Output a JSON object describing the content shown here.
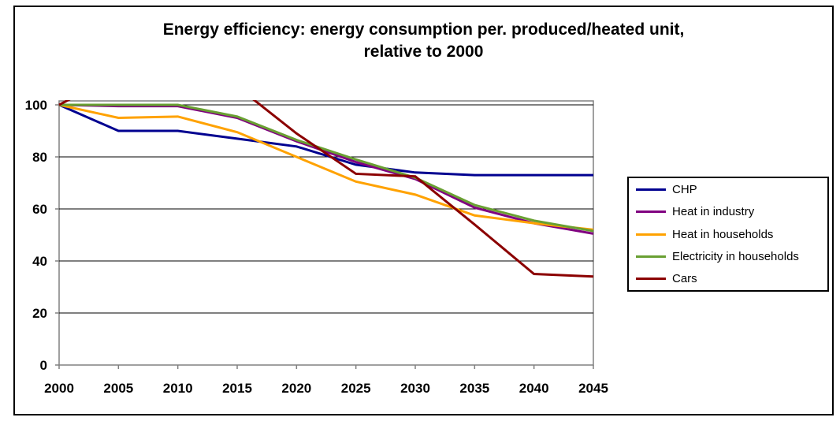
{
  "window": {
    "background": "#ffffff",
    "frame_border_color": "#000000",
    "plot_border_color": "#808080",
    "gridline_color": "#000000"
  },
  "chart_data": {
    "type": "line",
    "title": "Energy efficiency: energy consumption per. produced/heated unit, relative to 2000",
    "title_lines": [
      "Energy efficiency: energy consumption per. produced/heated unit,",
      "relative to 2000"
    ],
    "x": [
      2000,
      2005,
      2010,
      2015,
      2020,
      2025,
      2030,
      2035,
      2040,
      2045
    ],
    "x_tick_labels": [
      "2000",
      "2005",
      "2010",
      "2015",
      "2020",
      "2025",
      "2030",
      "2035",
      "2040",
      "2045"
    ],
    "y_ticks": [
      0,
      20,
      40,
      60,
      80,
      100
    ],
    "y_tick_labels": [
      "0",
      "20",
      "40",
      "60",
      "80",
      "100"
    ],
    "xlim": [
      2000,
      2045
    ],
    "ylim": [
      0,
      101.5
    ],
    "grid": "horizontal",
    "legend_position": "right",
    "clip_series_to_plot": true,
    "series": [
      {
        "name": "CHP",
        "color": "#000090",
        "values": [
          100,
          90,
          90,
          87,
          84,
          77,
          74,
          73,
          73,
          73
        ]
      },
      {
        "name": "Heat in industry",
        "color": "#800080",
        "values": [
          100,
          99.5,
          99.5,
          95,
          86,
          78,
          71.5,
          60.5,
          54.5,
          50.5
        ]
      },
      {
        "name": "Heat in households",
        "color": "#FFA200",
        "values": [
          100,
          95,
          95.5,
          89.5,
          80,
          70.5,
          65.5,
          57.5,
          54.5,
          52
        ]
      },
      {
        "name": "Electricity in households",
        "color": "#69A032",
        "values": [
          100,
          100,
          100,
          95.5,
          86.5,
          79,
          72,
          61.5,
          55.5,
          51.5
        ]
      },
      {
        "name": "Cars",
        "color": "#8B0000",
        "values": [
          100,
          112,
          112,
          107,
          89,
          73.5,
          72.5,
          54,
          35,
          34
        ]
      }
    ]
  }
}
